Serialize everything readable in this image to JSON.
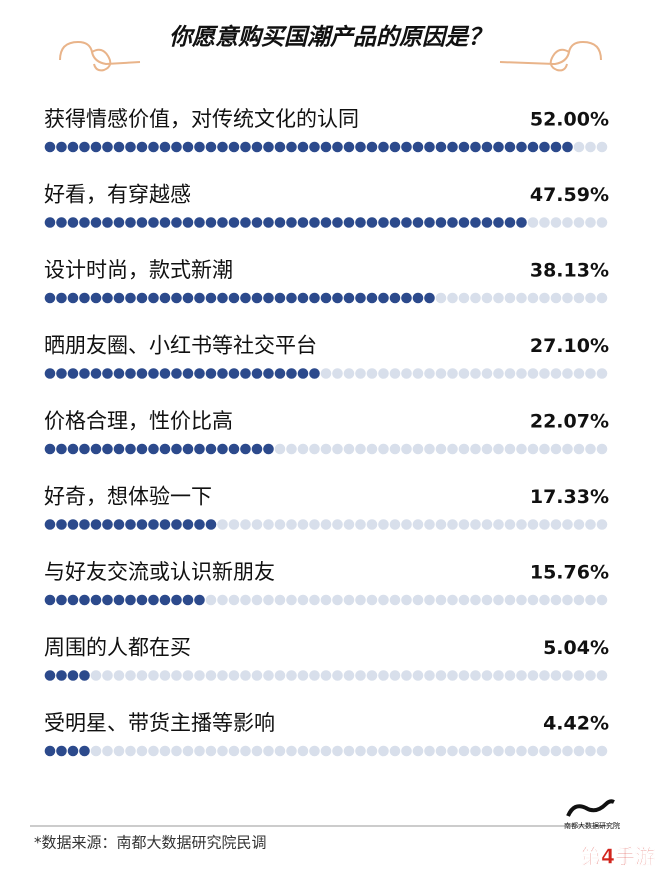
{
  "chart_data": {
    "type": "dotbar",
    "title": "你愿意购买国潮产品的原因是？",
    "categories": [
      "获得情感价值，对传统文化的认同",
      "好看，有穿越感",
      "设计时尚，款式新潮",
      "晒朋友圈、小红书等社交平台",
      "价格合理，性价比高",
      "好奇，想体验一下",
      "与好友交流或认识新朋友",
      "周围的人都在买",
      "受明星、带货主播等影响"
    ],
    "values": [
      52.0,
      47.59,
      38.13,
      27.1,
      22.07,
      17.33,
      15.76,
      5.04,
      4.42
    ],
    "value_labels": [
      "52.00%",
      "47.59%",
      "38.13%",
      "27.10%",
      "22.07%",
      "17.33%",
      "15.76%",
      "5.04%",
      "4.42%"
    ],
    "color": "#2c4a8c",
    "track_color": "#d8dfeb",
    "source": "*数据来源：南都大数据研究院民调",
    "logo": "南都大数据研究院",
    "watermark": "第4手游"
  }
}
